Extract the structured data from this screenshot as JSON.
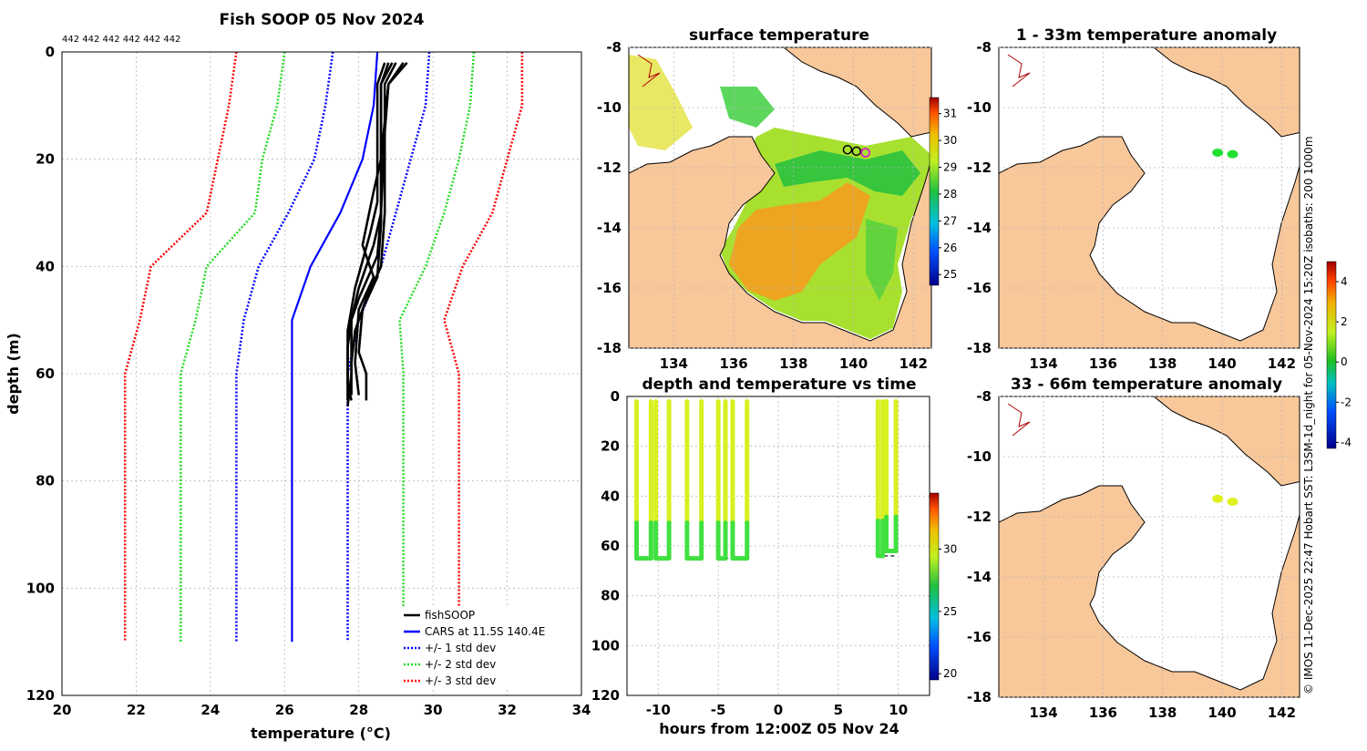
{
  "colors": {
    "fishsoop": "#000000",
    "cars": "#0000ff",
    "std1": "#0000ff",
    "std2": "#22dd22",
    "std3": "#ff0000",
    "land": "#f8c79a",
    "ocean_blank": "#ffffff",
    "sst_warm": "#f0a020",
    "sst_mid": "#a8e030",
    "sst_cool": "#22c040",
    "anomaly_green": "#22e030",
    "anomaly_yellow": "#e0f020",
    "time_green": "#40e040",
    "time_yellow": "#d8f020"
  },
  "side_credit": "© IMOS 11-Dec-2025 22:47 Hobart SST: L3SM-1d_night for 05-Nov-2024 15:20Z isobaths: 200  1000m",
  "chart_data": [
    {
      "id": "profile",
      "type": "line",
      "title": "Fish SOOP 05 Nov 2024",
      "subtitle": "442 442 442 442 442 442",
      "xlabel": "temperature (°C)",
      "ylabel": "depth (m)",
      "xlim": [
        20,
        34
      ],
      "ylim": [
        0,
        120
      ],
      "y_reversed": true,
      "xticks": [
        20,
        22,
        24,
        26,
        28,
        30,
        32,
        34
      ],
      "yticks": [
        0,
        20,
        40,
        60,
        80,
        100,
        120
      ],
      "legend": {
        "position": "bottom-right",
        "entries": [
          {
            "label": "fishSOOP",
            "color": "#000000",
            "style": "solid"
          },
          {
            "label": "CARS at 11.5S 140.4E",
            "color": "#0000ff",
            "style": "solid"
          },
          {
            "label": "+/- 1 std dev",
            "color": "#0000ff",
            "style": "dotted"
          },
          {
            "label": "+/- 2 std dev",
            "color": "#22dd22",
            "style": "dotted"
          },
          {
            "label": "+/- 3 std dev",
            "color": "#ff0000",
            "style": "dotted"
          }
        ]
      },
      "series": [
        {
          "name": "CARS",
          "color": "#0000ff",
          "style": "solid",
          "points": [
            [
              28.5,
              0
            ],
            [
              28.4,
              10
            ],
            [
              28.1,
              20
            ],
            [
              27.5,
              30
            ],
            [
              26.7,
              40
            ],
            [
              26.2,
              50
            ],
            [
              26.2,
              60
            ],
            [
              26.2,
              110
            ]
          ]
        },
        {
          "name": "+1 std",
          "color": "#0000ff",
          "style": "dotted",
          "points": [
            [
              29.9,
              0
            ],
            [
              29.8,
              10
            ],
            [
              29.4,
              20
            ],
            [
              29.0,
              30
            ],
            [
              28.6,
              40
            ],
            [
              28.0,
              50
            ],
            [
              27.7,
              60
            ],
            [
              27.7,
              110
            ]
          ]
        },
        {
          "name": "-1 std",
          "color": "#0000ff",
          "style": "dotted",
          "points": [
            [
              27.3,
              0
            ],
            [
              27.1,
              10
            ],
            [
              26.8,
              20
            ],
            [
              26.1,
              30
            ],
            [
              25.3,
              40
            ],
            [
              24.9,
              50
            ],
            [
              24.7,
              60
            ],
            [
              24.7,
              110
            ]
          ]
        },
        {
          "name": "+2 std",
          "color": "#22dd22",
          "style": "dotted",
          "points": [
            [
              31.1,
              0
            ],
            [
              31.0,
              10
            ],
            [
              30.7,
              20
            ],
            [
              30.3,
              30
            ],
            [
              29.8,
              40
            ],
            [
              29.1,
              50
            ],
            [
              29.2,
              60
            ],
            [
              29.2,
              110
            ]
          ]
        },
        {
          "name": "-2 std",
          "color": "#22dd22",
          "style": "dotted",
          "points": [
            [
              26.0,
              0
            ],
            [
              25.8,
              10
            ],
            [
              25.4,
              20
            ],
            [
              25.2,
              30
            ],
            [
              23.9,
              40
            ],
            [
              23.6,
              50
            ],
            [
              23.2,
              60
            ],
            [
              23.2,
              110
            ]
          ]
        },
        {
          "name": "+3 std",
          "color": "#ff0000",
          "style": "dotted",
          "points": [
            [
              32.4,
              0
            ],
            [
              32.4,
              10
            ],
            [
              32.0,
              20
            ],
            [
              31.6,
              30
            ],
            [
              30.8,
              40
            ],
            [
              30.3,
              50
            ],
            [
              30.7,
              60
            ],
            [
              30.7,
              110
            ]
          ]
        },
        {
          "name": "-3 std",
          "color": "#ff0000",
          "style": "dotted",
          "points": [
            [
              24.7,
              0
            ],
            [
              24.5,
              10
            ],
            [
              24.2,
              20
            ],
            [
              23.9,
              30
            ],
            [
              22.4,
              40
            ],
            [
              22.1,
              50
            ],
            [
              21.7,
              60
            ],
            [
              21.7,
              110
            ]
          ]
        },
        {
          "name": "fishSOOP cast 1",
          "color": "#000000",
          "style": "solid",
          "points": [
            [
              28.8,
              2
            ],
            [
              28.6,
              6
            ],
            [
              28.6,
              15
            ],
            [
              28.6,
              30
            ],
            [
              28.5,
              38
            ],
            [
              28.0,
              46
            ],
            [
              27.8,
              50
            ],
            [
              27.7,
              55
            ],
            [
              27.7,
              65
            ]
          ]
        },
        {
          "name": "fishSOOP cast 2",
          "color": "#000000",
          "style": "solid",
          "points": [
            [
              29.0,
              2
            ],
            [
              28.7,
              6
            ],
            [
              28.7,
              15
            ],
            [
              28.7,
              30
            ],
            [
              28.6,
              40
            ],
            [
              28.2,
              46
            ],
            [
              27.9,
              52
            ],
            [
              27.8,
              58
            ],
            [
              27.8,
              64
            ]
          ]
        },
        {
          "name": "fishSOOP cast 3",
          "color": "#000000",
          "style": "solid",
          "points": [
            [
              29.2,
              2
            ],
            [
              28.8,
              6
            ],
            [
              28.7,
              15
            ],
            [
              28.6,
              30
            ],
            [
              28.4,
              36
            ],
            [
              28.0,
              44
            ],
            [
              27.8,
              50
            ],
            [
              27.8,
              60
            ],
            [
              27.7,
              66
            ]
          ]
        },
        {
          "name": "fishSOOP cast 4",
          "color": "#000000",
          "style": "solid",
          "points": [
            [
              28.7,
              2
            ],
            [
              28.5,
              6
            ],
            [
              28.5,
              15
            ],
            [
              28.5,
              28
            ],
            [
              28.3,
              34
            ],
            [
              27.9,
              44
            ],
            [
              27.7,
              52
            ],
            [
              27.7,
              62
            ],
            [
              27.8,
              65
            ]
          ]
        },
        {
          "name": "fishSOOP cast 5",
          "color": "#000000",
          "style": "solid",
          "points": [
            [
              29.3,
              2
            ],
            [
              28.8,
              6
            ],
            [
              28.6,
              20
            ],
            [
              28.6,
              32
            ],
            [
              28.5,
              42
            ],
            [
              28.1,
              48
            ],
            [
              28.0,
              56
            ],
            [
              28.2,
              60
            ],
            [
              28.2,
              65
            ]
          ]
        },
        {
          "name": "fishSOOP cast 6",
          "color": "#000000",
          "style": "solid",
          "points": [
            [
              28.9,
              2
            ],
            [
              28.6,
              6
            ],
            [
              28.6,
              20
            ],
            [
              28.4,
              26
            ],
            [
              28.1,
              36
            ],
            [
              28.4,
              42
            ],
            [
              28.0,
              48
            ],
            [
              27.9,
              58
            ],
            [
              28.0,
              64
            ]
          ]
        }
      ]
    },
    {
      "id": "surface",
      "type": "heatmap",
      "title": "surface temperature",
      "xlim": [
        132.5,
        142.6
      ],
      "ylim": [
        -18,
        -8
      ],
      "xticks": [
        134,
        136,
        138,
        140,
        142
      ],
      "yticks": [
        -8,
        -10,
        -12,
        -14,
        -16,
        -18
      ],
      "colorbar": {
        "min": 24.6,
        "max": 31.6,
        "ticks": [
          25,
          26,
          27,
          28,
          29,
          30,
          31
        ]
      },
      "markers": [
        {
          "label": "ship positions",
          "lon": 139.8,
          "lat": -11.4
        },
        {
          "label": "ship positions",
          "lon": 140.1,
          "lat": -11.45
        },
        {
          "label": "profile location",
          "lon": 140.4,
          "lat": -11.5
        }
      ]
    },
    {
      "id": "anomaly_upper",
      "type": "heatmap",
      "title": "1 - 33m temperature anomaly",
      "xlim": [
        132.5,
        142.6
      ],
      "ylim": [
        -18,
        -8
      ],
      "xticks": [
        134,
        136,
        138,
        140,
        142
      ],
      "yticks": [
        -8,
        -10,
        -12,
        -14,
        -16,
        -18
      ],
      "points": [
        {
          "lon": 139.85,
          "lat": -11.5,
          "value": 0.2
        },
        {
          "lon": 140.35,
          "lat": -11.55,
          "value": 0.3
        }
      ]
    },
    {
      "id": "anomaly_lower",
      "type": "heatmap",
      "title": "33 - 66m temperature anomaly",
      "xlim": [
        132.5,
        142.6
      ],
      "ylim": [
        -18,
        -8
      ],
      "xticks": [
        134,
        136,
        138,
        140,
        142
      ],
      "yticks": [
        -8,
        -10,
        -12,
        -14,
        -16,
        -18
      ],
      "points": [
        {
          "lon": 139.85,
          "lat": -11.4,
          "value": 1.4
        },
        {
          "lon": 140.35,
          "lat": -11.5,
          "value": 1.5
        }
      ]
    },
    {
      "id": "anomaly_colorbar",
      "type": "heatmap",
      "colorbar": {
        "min": -4.3,
        "max": 5.0,
        "ticks": [
          -4,
          -2,
          0,
          2,
          4
        ]
      }
    },
    {
      "id": "timeseries",
      "type": "scatter",
      "title": "depth and temperature vs time",
      "xlabel": "hours from 12:00Z 05 Nov 24",
      "xlim": [
        -12.6,
        12.6
      ],
      "ylim": [
        0,
        120
      ],
      "y_reversed": true,
      "xticks": [
        -10,
        -5,
        0,
        5,
        10
      ],
      "yticks": [
        0,
        20,
        40,
        60,
        80,
        100,
        120
      ],
      "colorbar": {
        "min": 19.5,
        "max": 34.5,
        "ticks": [
          20,
          25,
          30
        ]
      },
      "casts": [
        {
          "t_down": -11.8,
          "t_up": -10.6,
          "bottom": 65
        },
        {
          "t_down": -10.2,
          "t_up": -9.1,
          "bottom": 65
        },
        {
          "t_down": -7.6,
          "t_up": -6.4,
          "bottom": 65
        },
        {
          "t_down": -5.0,
          "t_up": -4.4,
          "bottom": 65
        },
        {
          "t_down": -3.8,
          "t_up": -2.6,
          "bottom": 65
        },
        {
          "t_down": 8.3,
          "t_up": 8.7,
          "bottom": 64
        },
        {
          "t_down": 9.0,
          "t_up": 9.8,
          "bottom": 62
        }
      ]
    }
  ]
}
